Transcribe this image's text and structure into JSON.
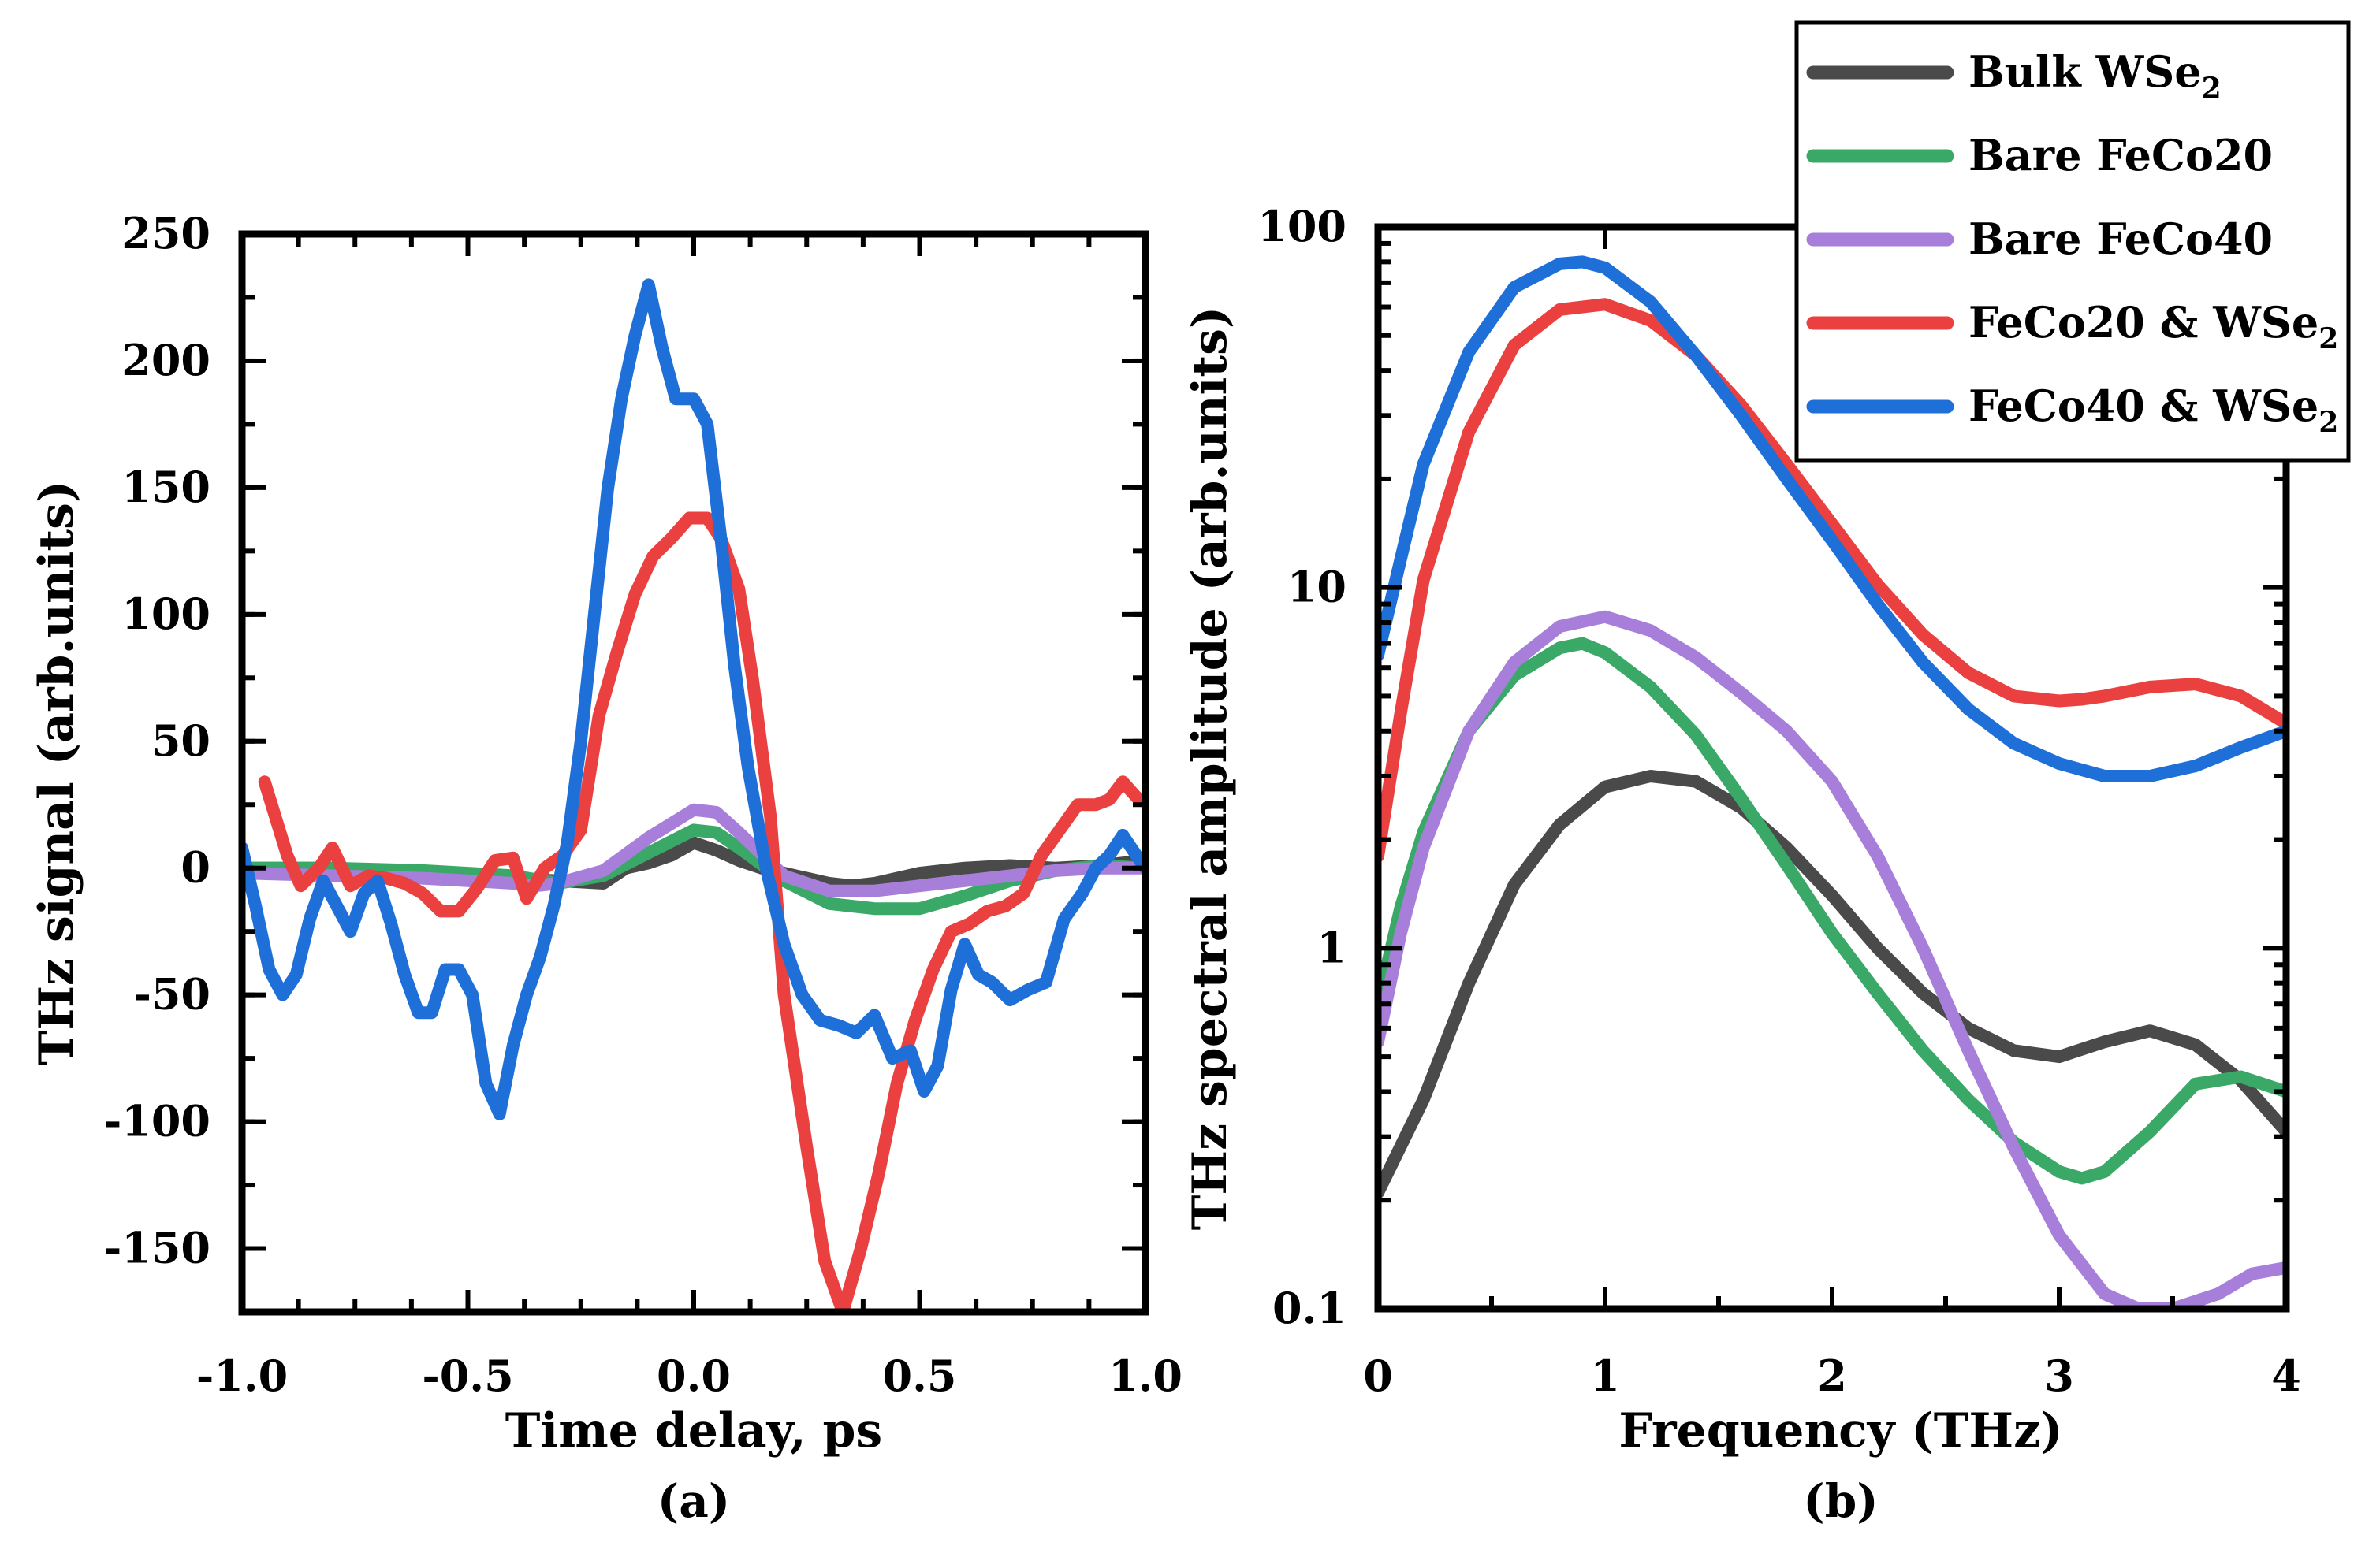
{
  "chart_data": [
    {
      "type": "line",
      "panel_label": "(a)",
      "xlabel": "Time delay, ps",
      "ylabel": "THz signal (arb.units)",
      "xlim": [
        -1.0,
        1.0
      ],
      "ylim": [
        -175,
        250
      ],
      "xticks": [
        "-1.0",
        "-0.5",
        "0.0",
        "0.5",
        "1.0"
      ],
      "xtick_values": [
        -1.0,
        -0.5,
        0.0,
        0.5,
        1.0
      ],
      "yticks": [
        "250",
        "200",
        "150",
        "100",
        "50",
        "0",
        "-50",
        "-100",
        "-150"
      ],
      "ytick_values": [
        250,
        200,
        150,
        100,
        50,
        0,
        -50,
        -100,
        -150
      ],
      "grid": false,
      "series": [
        {
          "name": "Bulk WSe2",
          "color": "#4a4a4a",
          "x": [
            -1.0,
            -0.8,
            -0.6,
            -0.4,
            -0.3,
            -0.2,
            -0.15,
            -0.1,
            -0.05,
            0.0,
            0.05,
            0.1,
            0.15,
            0.2,
            0.25,
            0.3,
            0.35,
            0.4,
            0.5,
            0.6,
            0.7,
            0.8,
            0.9,
            1.0
          ],
          "y": [
            0,
            0,
            -2,
            -4,
            -5,
            -6,
            0,
            2,
            5,
            10,
            7,
            3,
            0,
            -2,
            -4,
            -6,
            -7,
            -6,
            -2,
            0,
            1,
            0,
            1,
            3
          ]
        },
        {
          "name": "Bare FeCo20",
          "color": "#3aa867",
          "x": [
            -1.0,
            -0.8,
            -0.6,
            -0.4,
            -0.3,
            -0.2,
            -0.1,
            0.0,
            0.05,
            0.1,
            0.2,
            0.3,
            0.4,
            0.5,
            0.6,
            0.7,
            0.8,
            0.9,
            1.0
          ],
          "y": [
            0,
            0,
            -1,
            -3,
            -6,
            -3,
            6,
            15,
            14,
            8,
            -5,
            -14,
            -16,
            -16,
            -11,
            -5,
            -1,
            1,
            0
          ]
        },
        {
          "name": "Bare FeCo40",
          "color": "#a77fdb",
          "x": [
            -1.0,
            -0.8,
            -0.6,
            -0.4,
            -0.35,
            -0.3,
            -0.2,
            -0.1,
            0.0,
            0.05,
            0.1,
            0.2,
            0.3,
            0.4,
            0.5,
            0.6,
            0.7,
            0.8,
            0.9,
            1.0
          ],
          "y": [
            -2,
            -3,
            -4,
            -6,
            -7,
            -6,
            -1,
            12,
            23,
            22,
            14,
            -3,
            -9,
            -9,
            -7,
            -5,
            -3,
            -1,
            0,
            0
          ]
        },
        {
          "name": "FeCo20 & WSe2",
          "color": "#ea4040",
          "x": [
            -0.95,
            -0.9,
            -0.87,
            -0.83,
            -0.8,
            -0.76,
            -0.72,
            -0.68,
            -0.64,
            -0.6,
            -0.56,
            -0.52,
            -0.48,
            -0.44,
            -0.4,
            -0.37,
            -0.33,
            -0.29,
            -0.25,
            -0.21,
            -0.17,
            -0.13,
            -0.09,
            -0.05,
            -0.01,
            0.03,
            0.06,
            0.1,
            0.13,
            0.17,
            0.2,
            0.25,
            0.29,
            0.33,
            0.37,
            0.41,
            0.45,
            0.49,
            0.53,
            0.57,
            0.61,
            0.65,
            0.69,
            0.73,
            0.77,
            0.81,
            0.85,
            0.89,
            0.92,
            0.95,
            0.98,
            1.0
          ],
          "y": [
            34,
            5,
            -7,
            0,
            8,
            -7,
            -3,
            -4,
            -6,
            -10,
            -17,
            -17,
            -8,
            3,
            4,
            -12,
            0,
            5,
            15,
            60,
            85,
            108,
            123,
            130,
            138,
            138,
            130,
            110,
            75,
            20,
            -50,
            -110,
            -155,
            -175,
            -150,
            -120,
            -85,
            -60,
            -40,
            -25,
            -22,
            -17,
            -15,
            -10,
            5,
            15,
            25,
            25,
            27,
            34,
            28,
            26
          ]
        },
        {
          "name": "FeCo40 & WSe2",
          "color": "#1f6fd8",
          "x": [
            -1.0,
            -0.97,
            -0.94,
            -0.91,
            -0.88,
            -0.85,
            -0.82,
            -0.79,
            -0.76,
            -0.73,
            -0.7,
            -0.67,
            -0.64,
            -0.61,
            -0.58,
            -0.55,
            -0.52,
            -0.49,
            -0.46,
            -0.43,
            -0.4,
            -0.37,
            -0.34,
            -0.31,
            -0.28,
            -0.25,
            -0.22,
            -0.19,
            -0.16,
            -0.13,
            -0.1,
            -0.07,
            -0.04,
            0.0,
            0.03,
            0.06,
            0.09,
            0.12,
            0.16,
            0.2,
            0.24,
            0.28,
            0.32,
            0.36,
            0.4,
            0.44,
            0.48,
            0.51,
            0.54,
            0.57,
            0.6,
            0.63,
            0.66,
            0.7,
            0.74,
            0.78,
            0.82,
            0.86,
            0.89,
            0.92,
            0.95,
            0.98,
            1.0
          ],
          "y": [
            8,
            -15,
            -40,
            -50,
            -42,
            -20,
            -5,
            -15,
            -25,
            -10,
            -5,
            -22,
            -42,
            -57,
            -57,
            -40,
            -40,
            -50,
            -85,
            -97,
            -70,
            -50,
            -35,
            -15,
            10,
            50,
            100,
            150,
            185,
            210,
            230,
            205,
            185,
            185,
            175,
            130,
            80,
            40,
            0,
            -30,
            -50,
            -60,
            -62,
            -65,
            -58,
            -75,
            -72,
            -88,
            -78,
            -48,
            -30,
            -42,
            -45,
            -52,
            -48,
            -45,
            -20,
            -10,
            0,
            5,
            13,
            5,
            0
          ]
        }
      ]
    },
    {
      "type": "line",
      "panel_label": "(b)",
      "xlabel": "Frequency (THz)",
      "ylabel": "THz spectral amplitude (arb.units)",
      "xlim": [
        0,
        4
      ],
      "ylim": [
        0.1,
        100
      ],
      "yscale": "log",
      "xticks": [
        "0",
        "1",
        "2",
        "3",
        "4"
      ],
      "xtick_values": [
        0,
        1,
        2,
        3,
        4
      ],
      "yticks": [
        "0.1",
        "1",
        "10",
        "100"
      ],
      "ytick_values": [
        0.1,
        1,
        10,
        100
      ],
      "grid": false,
      "legend_position": "top-right",
      "series": [
        {
          "name": "Bulk WSe2",
          "color": "#4a4a4a",
          "x": [
            0.0,
            0.2,
            0.4,
            0.6,
            0.8,
            1.0,
            1.2,
            1.4,
            1.6,
            1.8,
            2.0,
            2.2,
            2.4,
            2.6,
            2.8,
            3.0,
            3.2,
            3.4,
            3.6,
            3.8,
            4.0
          ],
          "y": [
            0.21,
            0.38,
            0.8,
            1.5,
            2.2,
            2.8,
            3.0,
            2.9,
            2.45,
            1.9,
            1.4,
            1.0,
            0.75,
            0.6,
            0.52,
            0.5,
            0.55,
            0.59,
            0.54,
            0.43,
            0.31
          ]
        },
        {
          "name": "Bare FeCo20",
          "color": "#3aa867",
          "x": [
            0.0,
            0.1,
            0.2,
            0.4,
            0.6,
            0.8,
            0.9,
            1.0,
            1.2,
            1.4,
            1.6,
            1.8,
            2.0,
            2.2,
            2.4,
            2.6,
            2.8,
            3.0,
            3.1,
            3.2,
            3.4,
            3.6,
            3.8,
            4.0
          ],
          "y": [
            0.7,
            1.3,
            2.1,
            4.0,
            5.7,
            6.8,
            7.0,
            6.6,
            5.3,
            3.9,
            2.6,
            1.7,
            1.1,
            0.75,
            0.52,
            0.38,
            0.29,
            0.24,
            0.23,
            0.24,
            0.31,
            0.42,
            0.44,
            0.4
          ]
        },
        {
          "name": "Bare FeCo40",
          "color": "#a77fdb",
          "x": [
            0.0,
            0.1,
            0.2,
            0.4,
            0.6,
            0.8,
            1.0,
            1.2,
            1.4,
            1.6,
            1.8,
            2.0,
            2.2,
            2.4,
            2.6,
            2.8,
            3.0,
            3.2,
            3.35,
            3.5,
            3.7,
            3.85,
            4.0
          ],
          "y": [
            0.55,
            1.1,
            1.9,
            4.0,
            6.2,
            7.8,
            8.3,
            7.6,
            6.4,
            5.1,
            4.0,
            2.9,
            1.8,
            1.0,
            0.52,
            0.28,
            0.16,
            0.11,
            0.1,
            0.1,
            0.11,
            0.125,
            0.13
          ]
        },
        {
          "name": "FeCo20 & WSe2",
          "color": "#ea4040",
          "x": [
            0.0,
            0.1,
            0.2,
            0.4,
            0.6,
            0.8,
            1.0,
            1.2,
            1.4,
            1.6,
            1.8,
            2.0,
            2.2,
            2.4,
            2.6,
            2.8,
            3.0,
            3.1,
            3.2,
            3.4,
            3.6,
            3.8,
            4.0
          ],
          "y": [
            1.8,
            4.5,
            10.5,
            27,
            47,
            59,
            61,
            55,
            44,
            32,
            22,
            15,
            10.2,
            7.4,
            5.8,
            5.0,
            4.85,
            4.9,
            5.0,
            5.3,
            5.4,
            5.0,
            4.2
          ]
        },
        {
          "name": "FeCo40 & WSe2",
          "color": "#1f6fd8",
          "x": [
            0.0,
            0.1,
            0.2,
            0.4,
            0.6,
            0.8,
            0.9,
            1.0,
            1.2,
            1.4,
            1.6,
            1.8,
            2.0,
            2.2,
            2.4,
            2.6,
            2.8,
            3.0,
            3.2,
            3.4,
            3.6,
            3.8,
            4.0
          ],
          "y": [
            6.5,
            12,
            22,
            45,
            68,
            79,
            80,
            77,
            62,
            44,
            30,
            20,
            13.5,
            9.0,
            6.2,
            4.6,
            3.7,
            3.25,
            3.0,
            3.0,
            3.2,
            3.6,
            4.0
          ]
        }
      ]
    }
  ],
  "legend": {
    "entries": [
      {
        "main": "Bulk WSe",
        "sub": "2",
        "color": "#4a4a4a"
      },
      {
        "main": "Bare FeCo20",
        "sub": "",
        "color": "#3aa867"
      },
      {
        "main": "Bare FeCo40",
        "sub": "",
        "color": "#a77fdb"
      },
      {
        "main": "FeCo20 & WSe",
        "sub": "2",
        "color": "#ea4040"
      },
      {
        "main": "FeCo40 & WSe",
        "sub": "2",
        "color": "#1f6fd8"
      }
    ]
  }
}
